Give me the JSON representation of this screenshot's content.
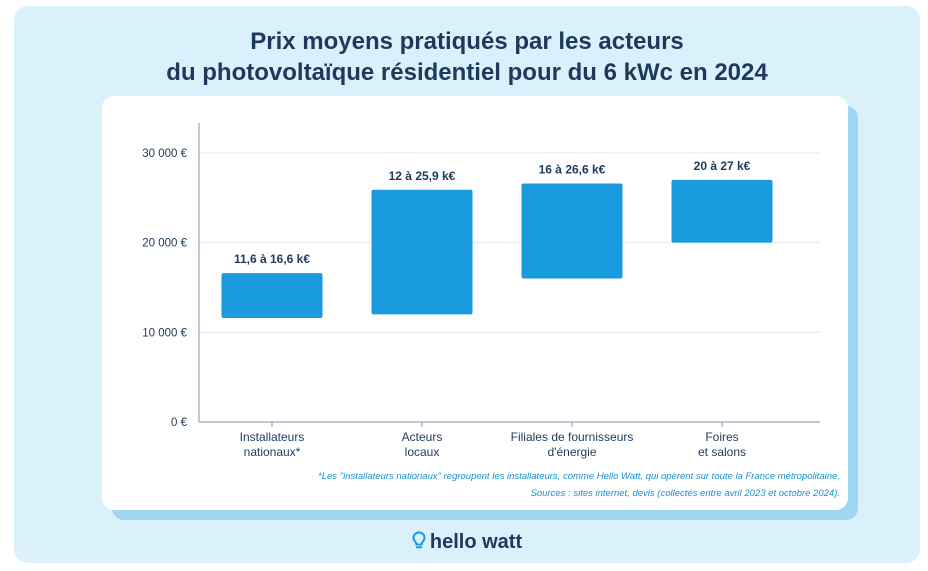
{
  "title": {
    "line1": "Prix moyens pratiqués par les acteurs",
    "line2": "du photovoltaïque résidentiel pour du 6 kWc en 2024"
  },
  "chart_data": {
    "type": "bar",
    "subtype": "floating-range",
    "categories": [
      [
        "Installateurs",
        "nationaux*"
      ],
      [
        "Acteurs",
        "locaux"
      ],
      [
        "Filiales de fournisseurs",
        "d'énergie"
      ],
      [
        "Foires",
        "et salons"
      ]
    ],
    "ranges": [
      [
        11600,
        16600
      ],
      [
        12000,
        25900
      ],
      [
        16000,
        26600
      ],
      [
        20000,
        27000
      ]
    ],
    "data_labels": [
      "11,6 à 16,6 k€",
      "12 à 25,9 k€",
      "16 à 26,6 k€",
      "20 à 27 k€"
    ],
    "ylim": [
      0,
      30000
    ],
    "yticks": [
      0,
      10000,
      20000,
      30000
    ],
    "ytick_labels": [
      "0 €",
      "10 000 €",
      "20 000 €",
      "30 000 €"
    ],
    "grid": true,
    "bar_color": "#1a9be0"
  },
  "notes": {
    "footnote": "*Les \"installateurs nationaux\" regroupent les installateurs, comme Hello Watt, qui opèrent sur toute la France métropolitaine.",
    "sources": "Sources : sites internet, devis (collectés entre avril 2023 et octobre 2024)."
  },
  "brand": {
    "logo_text": "hello watt",
    "logo_icon": "lightbulb-icon",
    "text_color": "#1d3a5c",
    "accent_color": "#1a9be0",
    "background_color": "#daf0fb"
  }
}
